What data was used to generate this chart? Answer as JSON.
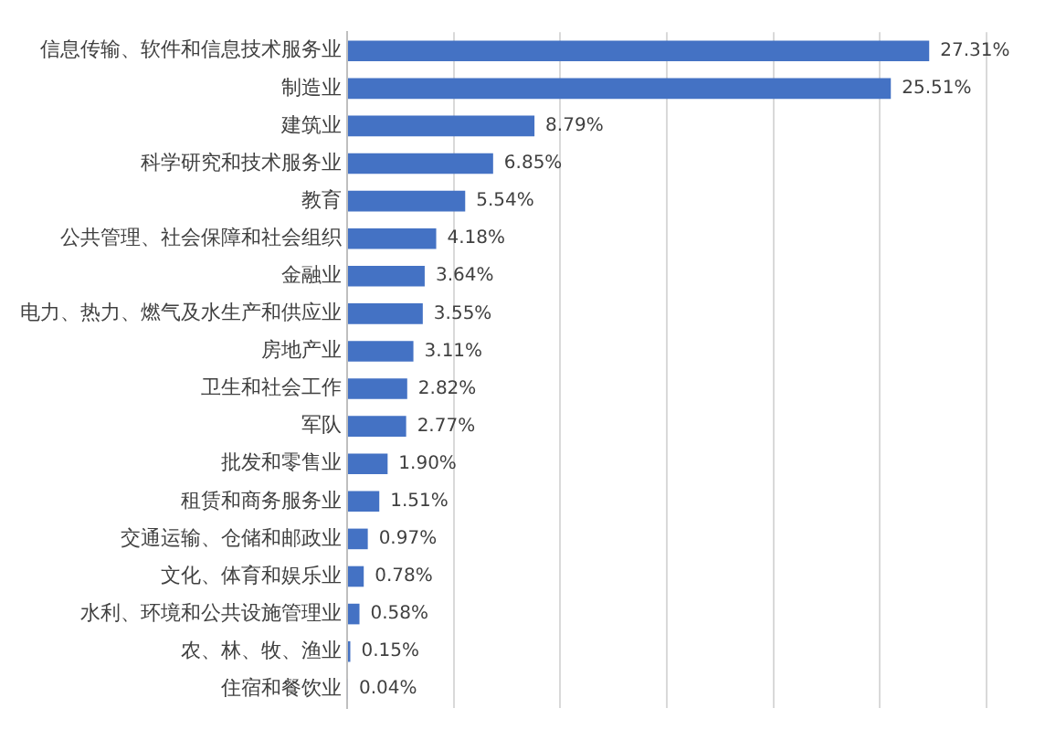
{
  "chart_data": {
    "type": "bar",
    "orientation": "horizontal",
    "categories": [
      "信息传输、软件和信息技术服务业",
      "制造业",
      "建筑业",
      "科学研究和技术服务业",
      "教育",
      "公共管理、社会保障和社会组织",
      "金融业",
      "电力、热力、燃气及水生产和供应业",
      "房地产业",
      "卫生和社会工作",
      "军队",
      "批发和零售业",
      "租赁和商务服务业",
      "交通运输、仓储和邮政业",
      "文化、体育和娱乐业",
      "水利、环境和公共设施管理业",
      "农、林、牧、渔业",
      "住宿和餐饮业"
    ],
    "values": [
      27.31,
      25.51,
      8.79,
      6.85,
      5.54,
      4.18,
      3.64,
      3.55,
      3.11,
      2.82,
      2.77,
      1.9,
      1.51,
      0.97,
      0.78,
      0.58,
      0.15,
      0.04
    ],
    "value_labels": [
      "27.31%",
      "25.51%",
      "8.79%",
      "6.85%",
      "5.54%",
      "4.18%",
      "3.64%",
      "3.55%",
      "3.11%",
      "2.82%",
      "2.77%",
      "1.90%",
      "1.51%",
      "0.97%",
      "0.78%",
      "0.58%",
      "0.15%",
      "0.04%"
    ],
    "color": "#4472c4",
    "xlim": [
      0,
      30
    ],
    "xticks": [
      {
        "value": 0,
        "label": null
      },
      {
        "value": 5,
        "label": null
      },
      {
        "value": 10,
        "label": null
      },
      {
        "value": 15,
        "label": null
      },
      {
        "value": 20,
        "label": null
      },
      {
        "value": 25,
        "label": null
      },
      {
        "value": 30,
        "label": null
      }
    ],
    "grid": "x",
    "legend": false,
    "tick_labels": "y"
  }
}
